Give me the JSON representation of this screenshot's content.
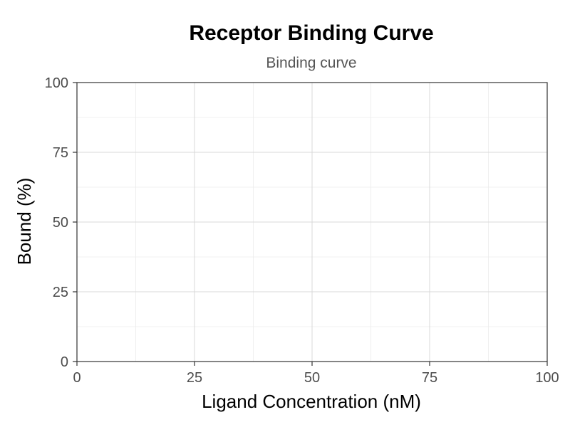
{
  "chart_data": {
    "type": "line",
    "title": "Receptor Binding Curve",
    "subtitle": "Binding curve",
    "xlabel": "Ligand Concentration (nM)",
    "ylabel": "Bound (%)",
    "xlim": [
      0,
      100
    ],
    "ylim": [
      0,
      100
    ],
    "x_ticks": [
      0,
      25,
      50,
      75,
      100
    ],
    "y_ticks": [
      0,
      25,
      50,
      75,
      100
    ],
    "x_tick_labels": [
      "0",
      "25",
      "50",
      "75",
      "100"
    ],
    "y_tick_labels": [
      "0",
      "25",
      "50",
      "75",
      "100"
    ],
    "grid": true,
    "series": []
  },
  "colors": {
    "background": "#ffffff",
    "panel_border": "#333333",
    "grid_major": "#d9d9d9",
    "grid_minor": "#ebebeb",
    "tick_label": "#4d4d4d",
    "subtitle": "#555555"
  }
}
